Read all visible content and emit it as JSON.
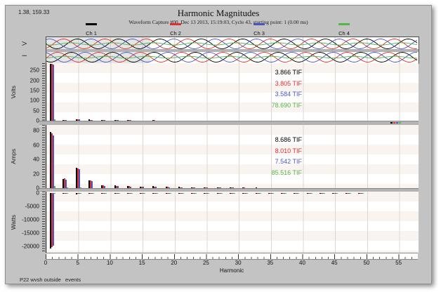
{
  "colors": {
    "ch1": "#000000",
    "ch2": "#dd3030",
    "ch3": "#4a56c4",
    "ch4": "#52b648",
    "window_bg": "#c3c3c3",
    "plot_bg": "#ffffff",
    "grid": "#ddd7d2",
    "separator": "#b4b4b4"
  },
  "header": {
    "coords_readout": "1.38, 159.33",
    "title": "Harmonic Magnitudes",
    "subtitle": "Waveform Capture #00, Dec 13 2013, 15:19:03, Cycle 43, starting point: 1 (0.00 ms)"
  },
  "legend": {
    "items": [
      {
        "label": "Ch 1",
        "color": "#000000"
      },
      {
        "label": "Ch 2",
        "color": "#dd3030"
      },
      {
        "label": "Ch 3",
        "color": "#4a56c4"
      },
      {
        "label": "Ch 4",
        "color": "#52b648"
      }
    ]
  },
  "preview": {
    "v_label": "V",
    "i_label": "I"
  },
  "xaxis": {
    "label": "Harmonic",
    "ticks": [
      0,
      5,
      10,
      15,
      20,
      25,
      30,
      35,
      40,
      45,
      50,
      55
    ]
  },
  "statusbar": {
    "text": "P22 wvsh outside   events"
  },
  "chart_data": [
    {
      "panel": "volts",
      "type": "bar",
      "ylabel": "Volts",
      "xlabel": "Harmonic",
      "ylim": [
        0,
        285
      ],
      "xlim": [
        0,
        58
      ],
      "grid": true,
      "legend_position": "top",
      "yticks": [
        0,
        50,
        100,
        150,
        200,
        250
      ],
      "harmonics": [
        1,
        3,
        5,
        7,
        9,
        11,
        13,
        15,
        17,
        19,
        21,
        23,
        25,
        27,
        29,
        31,
        33,
        35,
        37,
        39,
        41,
        43,
        45,
        47,
        49
      ],
      "series": [
        {
          "name": "Ch 1",
          "color": "#000000",
          "values": [
            283,
            3,
            8,
            6,
            2,
            3,
            2,
            1.5,
            2,
            1.5,
            1.5,
            1,
            1,
            0.8,
            0.8,
            0.6,
            0.6,
            0.5,
            0.5,
            0.5,
            0.4,
            0.4,
            0.3,
            0.3,
            0.3
          ]
        },
        {
          "name": "Ch 2",
          "color": "#dd3030",
          "values": [
            281,
            3,
            7,
            5,
            2,
            3,
            2,
            1.5,
            2,
            1.5,
            1,
            1,
            1,
            0.8,
            0.7,
            0.6,
            0.5,
            0.5,
            0.5,
            0.4,
            0.4,
            0.3,
            0.3,
            0.3,
            0.2
          ]
        },
        {
          "name": "Ch 3",
          "color": "#4a56c4",
          "values": [
            278,
            2,
            7,
            5,
            2,
            2,
            2,
            1,
            1.5,
            1,
            1,
            1,
            0.8,
            0.7,
            0.6,
            0.5,
            0.5,
            0.4,
            0.4,
            0.4,
            0.3,
            0.3,
            0.3,
            0.2,
            0.2
          ]
        },
        {
          "name": "Ch 4",
          "color": "#52b648",
          "values": [
            8,
            1,
            1,
            1,
            0.5,
            0.5,
            0.5,
            0.3,
            0.3,
            0.3,
            0.3,
            0.2,
            0.2,
            0.2,
            0.2,
            0.1,
            0.1,
            0.1,
            0.1,
            0.1,
            0.1,
            0.1,
            0.1,
            0.1,
            0.1
          ]
        }
      ],
      "tif": [
        {
          "text": "3.866 TIF",
          "color": "#000000"
        },
        {
          "text": "3.805 TIF",
          "color": "#dd3030"
        },
        {
          "text": "3.584 TIF",
          "color": "#4a56c4"
        },
        {
          "text": "78.690 TIF",
          "color": "#52b648"
        }
      ]
    },
    {
      "panel": "amps",
      "type": "bar",
      "ylabel": "Amps",
      "xlabel": "Harmonic",
      "ylim": [
        0,
        88
      ],
      "xlim": [
        0,
        58
      ],
      "grid": true,
      "legend_position": "top",
      "yticks": [
        0,
        20,
        40,
        60,
        80
      ],
      "harmonics": [
        1,
        3,
        5,
        7,
        9,
        11,
        13,
        15,
        17,
        19,
        21,
        23,
        25,
        27,
        29,
        31,
        33,
        35,
        37,
        39,
        41,
        43,
        45,
        47,
        49
      ],
      "series": [
        {
          "name": "Ch 1",
          "color": "#000000",
          "values": [
            78,
            13,
            28,
            11,
            4,
            4,
            3,
            2,
            3,
            2,
            2,
            1.5,
            1,
            0.8,
            0.8,
            0.6,
            0.6,
            0.5,
            0.5,
            0.4,
            0.4,
            0.3,
            0.3,
            0.3,
            0.2
          ]
        },
        {
          "name": "Ch 2",
          "color": "#dd3030",
          "values": [
            76,
            14,
            27,
            11,
            4,
            3,
            3,
            2,
            2,
            2,
            1.5,
            1.5,
            1,
            0.8,
            0.7,
            0.6,
            0.5,
            0.5,
            0.4,
            0.4,
            0.3,
            0.3,
            0.3,
            0.2,
            0.2
          ]
        },
        {
          "name": "Ch 3",
          "color": "#4a56c4",
          "values": [
            73,
            12,
            26,
            10,
            3,
            3,
            2,
            2,
            2,
            1.5,
            1.5,
            1,
            1,
            0.7,
            0.7,
            0.5,
            0.5,
            0.4,
            0.4,
            0.3,
            0.3,
            0.3,
            0.2,
            0.2,
            0.2
          ]
        },
        {
          "name": "Ch 4",
          "color": "#52b648",
          "values": [
            3,
            1,
            1,
            0.5,
            0.3,
            0.3,
            0.2,
            0.2,
            0.2,
            0.1,
            0.1,
            0.1,
            0.1,
            0.1,
            0.1,
            0.1,
            0.1,
            0.1,
            0.1,
            0.1,
            0.1,
            0.1,
            0.1,
            0.1,
            0.1
          ]
        }
      ],
      "tif": [
        {
          "text": "8.686 TIF",
          "color": "#000000"
        },
        {
          "text": "8.010 TIF",
          "color": "#dd3030"
        },
        {
          "text": "7.542 TIF",
          "color": "#4a56c4"
        },
        {
          "text": "85.516 TIF",
          "color": "#52b648"
        }
      ]
    },
    {
      "panel": "watts",
      "type": "bar",
      "ylabel": "Watts",
      "xlabel": "Harmonic",
      "ylim": [
        -22500,
        500
      ],
      "xlim": [
        0,
        58
      ],
      "grid": true,
      "legend_position": "top",
      "yticks": [
        0,
        -5000,
        -10000,
        -15000,
        -20000
      ],
      "harmonics": [
        1,
        3,
        5,
        7,
        9,
        11,
        13,
        15,
        17,
        19,
        21,
        23,
        25,
        27,
        29,
        31,
        33,
        35,
        37,
        39,
        41,
        43,
        45,
        47,
        49
      ],
      "series": [
        {
          "name": "Ch 1",
          "color": "#000000",
          "values": [
            -21000,
            -250,
            -450,
            -280,
            -80,
            -70,
            -50,
            -40,
            -40,
            -30,
            -30,
            -25,
            -20,
            -20,
            -15,
            -15,
            -10,
            -10,
            -10,
            -10,
            -10,
            -10,
            -10,
            -10,
            -10
          ]
        },
        {
          "name": "Ch 2",
          "color": "#dd3030",
          "values": [
            -20400,
            -230,
            -430,
            -260,
            -75,
            -65,
            -45,
            -40,
            -35,
            -30,
            -25,
            -25,
            -20,
            -15,
            -15,
            -10,
            -10,
            -10,
            -10,
            -10,
            -10,
            -10,
            -10,
            -10,
            -10
          ]
        },
        {
          "name": "Ch 3",
          "color": "#4a56c4",
          "values": [
            -19800,
            -210,
            -410,
            -240,
            -70,
            -60,
            -45,
            -35,
            -35,
            -25,
            -25,
            -20,
            -20,
            -15,
            -10,
            -10,
            -10,
            -10,
            -10,
            -10,
            -10,
            -10,
            -10,
            -10,
            -10
          ]
        },
        {
          "name": "Ch 4",
          "color": "#52b648",
          "values": [
            -150,
            -20,
            -30,
            -20,
            -10,
            -10,
            -10,
            -10,
            -10,
            -10,
            -10,
            -10,
            -10,
            -10,
            -10,
            -10,
            -10,
            -10,
            -10,
            -10,
            -10,
            -10,
            -10,
            -10,
            -10
          ]
        }
      ],
      "tif": []
    }
  ]
}
